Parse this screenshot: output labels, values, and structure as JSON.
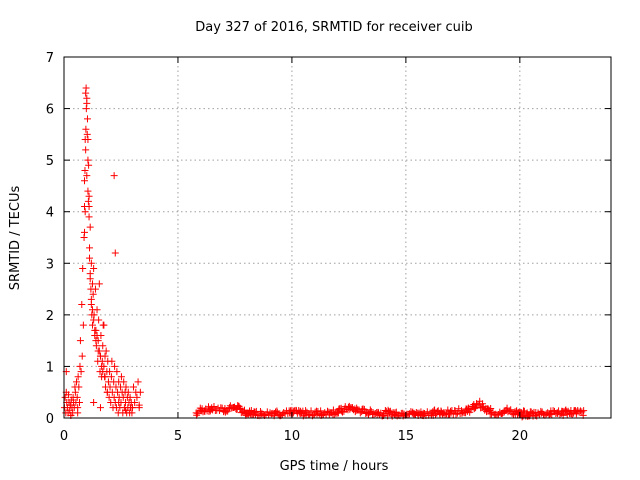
{
  "chart_data": {
    "type": "scatter",
    "title": "Day 327 of 2016, SRMTID for receiver cuib",
    "xlabel": "GPS time / hours",
    "ylabel": "SRMTID / TECUs",
    "xlim": [
      0,
      24
    ],
    "ylim": [
      0,
      7
    ],
    "xticks": [
      0,
      5,
      10,
      15,
      20
    ],
    "yticks": [
      0,
      1,
      2,
      3,
      4,
      5,
      6,
      7
    ],
    "grid": true,
    "marker": "plus",
    "color": "#ff0000",
    "series": [
      {
        "x": [
          0.02,
          0.05,
          0.08,
          0.1,
          0.12,
          0.15,
          0.18,
          0.2,
          0.22,
          0.25,
          0.28,
          0.3,
          0.32,
          0.35,
          0.38,
          0.4,
          0.42,
          0.45,
          0.48,
          0.5,
          0.52,
          0.55,
          0.58,
          0.6,
          0.62,
          0.65,
          0.68,
          0.7,
          0.72,
          0.75,
          0.78,
          0.8,
          0.82,
          0.85,
          0.88,
          0.9,
          0.9,
          0.92,
          0.93,
          0.95,
          0.97,
          1.0,
          1.02,
          1.05,
          1.07,
          1.1,
          1.12,
          1.15,
          1.18,
          1.2,
          1.22,
          1.25,
          1.28,
          1.3,
          1.32,
          1.35,
          1.38,
          1.4,
          1.42,
          1.45,
          1.48,
          1.5,
          1.52,
          1.55,
          1.58,
          1.6,
          1.62,
          1.65,
          1.68,
          1.7,
          1.72,
          1.75,
          1.78,
          1.8,
          1.82,
          1.85,
          1.88,
          1.9,
          1.92,
          1.95,
          1.98,
          2.0,
          2.02,
          2.05,
          2.08,
          2.1,
          2.12,
          2.15,
          2.18,
          2.2,
          2.22,
          2.25,
          2.28,
          2.3,
          2.32,
          2.35,
          2.38,
          2.4,
          2.42,
          2.45,
          2.48,
          2.5,
          2.52,
          2.55,
          2.58,
          2.6,
          2.62,
          2.65,
          2.68,
          2.7,
          2.72,
          2.75,
          2.78,
          2.8,
          2.82,
          2.85,
          2.88,
          2.9,
          2.92,
          2.95,
          2.98,
          3.0,
          3.05,
          3.1,
          3.15,
          3.2,
          3.25,
          3.3,
          3.35,
          0.95,
          1.0,
          1.05,
          1.1,
          1.15,
          0.98,
          1.03,
          1.08,
          1.12,
          1.2,
          1.25,
          0.9,
          0.93,
          0.96,
          1.0,
          1.05,
          1.1,
          1.15,
          1.2,
          1.25,
          1.3,
          1.35,
          1.4,
          1.45,
          1.5,
          1.55,
          1.6,
          1.65,
          1.7,
          1.75,
          1.8,
          2.2,
          2.25,
          0.1,
          0.3,
          0.6,
          1.3,
          1.6,
          1.9,
          2.4,
          2.7,
          3.0,
          3.3
        ],
        "y": [
          0.2,
          0.4,
          0.1,
          0.5,
          0.3,
          0.2,
          0.1,
          0.45,
          0.3,
          0.15,
          0.25,
          0.05,
          0.35,
          0.2,
          0.1,
          0.4,
          0.3,
          0.2,
          0.6,
          0.5,
          0.3,
          0.7,
          0.4,
          0.2,
          0.8,
          0.6,
          0.3,
          1.0,
          1.5,
          0.9,
          2.2,
          1.2,
          2.9,
          1.8,
          3.5,
          4.1,
          4.6,
          4.8,
          5.4,
          6.3,
          6.4,
          6.1,
          5.5,
          5.0,
          4.2,
          3.9,
          3.1,
          2.7,
          2.5,
          2.2,
          2.0,
          1.8,
          2.4,
          2.9,
          2.0,
          1.6,
          2.5,
          1.7,
          1.4,
          2.1,
          1.1,
          1.5,
          1.9,
          1.3,
          0.9,
          1.2,
          1.6,
          0.8,
          1.1,
          1.4,
          1.8,
          1.0,
          0.8,
          1.2,
          0.6,
          1.3,
          0.9,
          0.5,
          1.1,
          0.7,
          0.4,
          0.9,
          0.6,
          0.3,
          0.8,
          1.1,
          0.5,
          0.2,
          0.7,
          0.4,
          1.0,
          0.3,
          0.6,
          0.2,
          0.9,
          0.5,
          0.1,
          0.7,
          0.4,
          0.2,
          0.6,
          0.3,
          0.8,
          0.5,
          0.1,
          0.4,
          0.7,
          0.2,
          0.5,
          0.3,
          0.6,
          0.1,
          0.4,
          0.2,
          0.5,
          0.3,
          0.1,
          0.4,
          0.2,
          0.3,
          0.1,
          0.2,
          0.6,
          0.3,
          0.5,
          0.4,
          0.7,
          0.2,
          0.5,
          5.2,
          4.7,
          4.4,
          4.1,
          3.7,
          6.0,
          5.8,
          4.9,
          3.3,
          3.0,
          2.6,
          3.6,
          4.0,
          5.6,
          6.2,
          5.4,
          4.3,
          2.8,
          2.3,
          2.1,
          1.9,
          1.7,
          1.5,
          1.6,
          1.3,
          2.6,
          1.2,
          1.0,
          0.9,
          1.8,
          0.8,
          4.7,
          3.2,
          0.9,
          0.05,
          0.1,
          0.3,
          0.2,
          0.5,
          0.3,
          0.15,
          0.2,
          0.25
        ],
        "trend": [
          [
            5.8,
            0.1
          ],
          [
            6.0,
            0.16
          ],
          [
            6.5,
            0.18
          ],
          [
            7.0,
            0.15
          ],
          [
            7.5,
            0.22
          ],
          [
            8.0,
            0.1
          ],
          [
            9.0,
            0.09
          ],
          [
            10.0,
            0.1
          ],
          [
            11.0,
            0.09
          ],
          [
            12.0,
            0.12
          ],
          [
            12.5,
            0.2
          ],
          [
            13.0,
            0.14
          ],
          [
            14.0,
            0.09
          ],
          [
            15.0,
            0.09
          ],
          [
            16.0,
            0.1
          ],
          [
            17.0,
            0.11
          ],
          [
            17.8,
            0.16
          ],
          [
            18.2,
            0.28
          ],
          [
            18.5,
            0.15
          ],
          [
            19.0,
            0.09
          ],
          [
            19.3,
            0.15
          ],
          [
            20.0,
            0.08
          ],
          [
            21.0,
            0.09
          ],
          [
            22.0,
            0.1
          ],
          [
            22.5,
            0.12
          ],
          [
            22.8,
            0.09
          ]
        ],
        "trend_range": [
          5.8,
          22.8
        ],
        "trend_step": 0.06
      }
    ]
  }
}
